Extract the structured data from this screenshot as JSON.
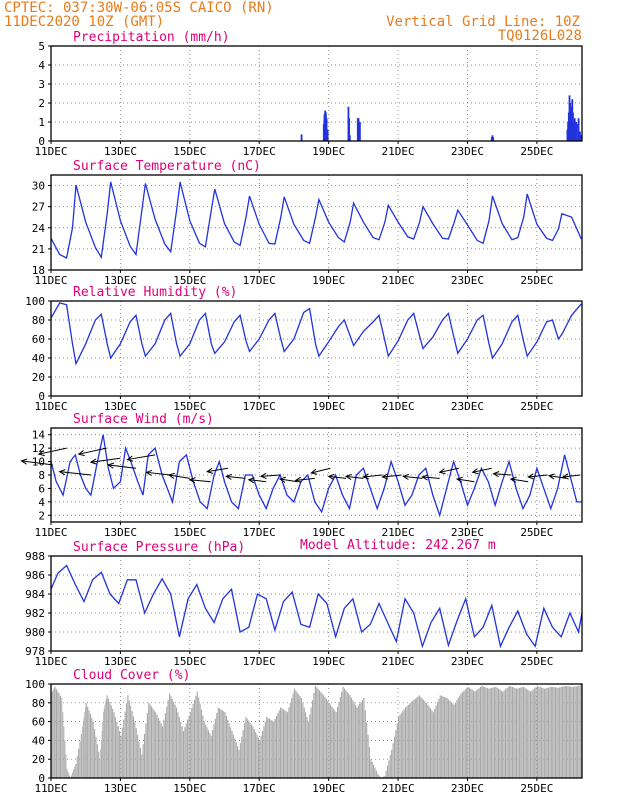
{
  "header": {
    "line1": "CPTEC:  037:30W-06:05S  CAICO (RN)",
    "line2": "11DEC2020 10Z (GMT)",
    "grid_note": "Vertical Grid Line: 10Z",
    "run_code": "TQ0126L028"
  },
  "model_altitude": "Model Altitude: 242.267 m",
  "x_ticks": [
    "11DEC",
    "13DEC",
    "15DEC",
    "17DEC",
    "19DEC",
    "21DEC",
    "23DEC",
    "25DEC"
  ],
  "colors": {
    "header": "#e87b1c",
    "title": "#e0007a",
    "line": "#2233dd",
    "bar": "#2233dd",
    "cloud": "#a8a8a8"
  },
  "chart_data": [
    {
      "id": "precip",
      "type": "bar",
      "title": "Precipitation (mm/h)",
      "ylim": [
        0,
        5
      ],
      "yticks": [
        0,
        1,
        2,
        3,
        4,
        5
      ],
      "x_unit": "days since 11DEC 10Z",
      "xlim": [
        0,
        15.3
      ],
      "x": [
        7.22,
        7.86,
        7.88,
        7.9,
        7.92,
        7.94,
        7.97,
        8.57,
        8.59,
        8.61,
        8.84,
        8.86,
        8.88,
        8.9,
        12.7,
        12.72,
        12.74,
        14.88,
        14.9,
        14.92,
        14.94,
        14.96,
        14.98,
        15.0,
        15.02,
        15.04,
        15.06,
        15.09,
        15.11,
        15.13,
        15.15,
        15.2,
        15.24,
        15.27
      ],
      "values": [
        0.35,
        0.9,
        1.4,
        1.6,
        1.5,
        1.2,
        0.6,
        1.8,
        1.2,
        0.3,
        1.2,
        1.2,
        1.0,
        1.0,
        0.2,
        0.3,
        0.2,
        0.6,
        1.0,
        1.5,
        2.4,
        2.0,
        1.6,
        1.8,
        2.2,
        1.5,
        1.0,
        1.2,
        0.8,
        1.0,
        0.9,
        1.2,
        0.5,
        0.3
      ]
    },
    {
      "id": "temp",
      "type": "line",
      "title": "Surface Temperature (nC)",
      "ylim": [
        18,
        31.5
      ],
      "yticks": [
        18,
        21,
        24,
        27,
        30
      ],
      "xlim": [
        0,
        15.3
      ],
      "x": [
        0,
        0.25,
        0.45,
        0.62,
        0.72,
        1.0,
        1.28,
        1.45,
        1.62,
        1.72,
        2.0,
        2.28,
        2.45,
        2.62,
        2.72,
        3.0,
        3.28,
        3.45,
        3.62,
        3.72,
        4.0,
        4.28,
        4.45,
        4.62,
        4.72,
        5.0,
        5.28,
        5.45,
        5.62,
        5.72,
        6.0,
        6.28,
        6.45,
        6.62,
        6.72,
        7.0,
        7.28,
        7.45,
        7.62,
        7.72,
        8.0,
        8.28,
        8.45,
        8.62,
        8.72,
        9.0,
        9.28,
        9.45,
        9.62,
        9.72,
        10.0,
        10.28,
        10.45,
        10.62,
        10.72,
        11.0,
        11.28,
        11.45,
        11.62,
        11.72,
        12.0,
        12.28,
        12.45,
        12.62,
        12.72,
        13.0,
        13.28,
        13.45,
        13.62,
        13.72,
        14.0,
        14.28,
        14.45,
        14.62,
        14.72,
        15.0,
        15.28
      ],
      "values": [
        22.5,
        20.2,
        19.7,
        24,
        30.1,
        24.8,
        21.2,
        19.8,
        26,
        30.5,
        25,
        21.4,
        20.2,
        26.5,
        30.3,
        25.2,
        21.7,
        20.6,
        26.5,
        30.5,
        25,
        21.8,
        21.3,
        26.5,
        29.5,
        24.6,
        22,
        21.5,
        25.5,
        28.5,
        24.5,
        21.8,
        21.7,
        25.5,
        28.4,
        24.5,
        22.2,
        21.8,
        25.5,
        28,
        24.8,
        22.6,
        22,
        24.8,
        27.5,
        24.8,
        22.6,
        22.3,
        24.8,
        27.2,
        24.8,
        22.7,
        22.4,
        24.8,
        27,
        24.6,
        22.5,
        22.4,
        24.8,
        26.5,
        24.4,
        22.2,
        21.8,
        25,
        28.5,
        24.6,
        22.3,
        22.6,
        25.5,
        28.8,
        24.5,
        22.5,
        22.2,
        23.8,
        26,
        25.5,
        22.4
      ]
    },
    {
      "id": "rh",
      "type": "line",
      "title": "Relative Humidity (%)",
      "ylim": [
        0,
        100
      ],
      "yticks": [
        0,
        20,
        40,
        60,
        80,
        100
      ],
      "xlim": [
        0,
        15.3
      ],
      "x": [
        0,
        0.25,
        0.45,
        0.62,
        0.72,
        1.0,
        1.28,
        1.45,
        1.62,
        1.72,
        2.0,
        2.28,
        2.45,
        2.62,
        2.72,
        3.0,
        3.28,
        3.45,
        3.62,
        3.72,
        4.0,
        4.28,
        4.45,
        4.62,
        4.72,
        5.0,
        5.28,
        5.45,
        5.62,
        5.72,
        6.0,
        6.28,
        6.45,
        6.62,
        6.72,
        7.0,
        7.28,
        7.45,
        7.62,
        7.72,
        8.0,
        8.28,
        8.45,
        8.62,
        8.72,
        9.0,
        9.28,
        9.45,
        9.62,
        9.72,
        10.0,
        10.28,
        10.45,
        10.62,
        10.72,
        11.0,
        11.28,
        11.45,
        11.62,
        11.72,
        12.0,
        12.28,
        12.45,
        12.62,
        12.72,
        13.0,
        13.28,
        13.45,
        13.62,
        13.72,
        14.0,
        14.28,
        14.45,
        14.62,
        14.72,
        15.0,
        15.28
      ],
      "values": [
        82,
        98,
        96,
        55,
        34,
        55,
        80,
        86,
        55,
        40,
        55,
        78,
        85,
        55,
        42,
        55,
        80,
        87,
        55,
        42,
        55,
        80,
        87,
        55,
        45,
        57,
        78,
        85,
        58,
        47,
        60,
        80,
        87,
        60,
        47,
        60,
        88,
        92,
        55,
        42,
        57,
        73,
        80,
        63,
        53,
        68,
        78,
        85,
        58,
        42,
        58,
        80,
        87,
        63,
        50,
        62,
        80,
        87,
        60,
        45,
        60,
        80,
        85,
        55,
        40,
        55,
        78,
        85,
        57,
        42,
        57,
        78,
        80,
        60,
        65,
        85,
        97
      ]
    },
    {
      "id": "wind",
      "type": "line",
      "title": "Surface Wind (m/s)",
      "ylim": [
        1,
        15
      ],
      "yticks": [
        2,
        4,
        6,
        8,
        10,
        12,
        14
      ],
      "xlim": [
        0,
        15.3
      ],
      "x": [
        0,
        0.15,
        0.35,
        0.55,
        0.7,
        0.85,
        1.0,
        1.15,
        1.3,
        1.5,
        1.65,
        1.8,
        2.0,
        2.15,
        2.3,
        2.5,
        2.65,
        2.8,
        3.0,
        3.2,
        3.35,
        3.5,
        3.7,
        3.9,
        4.1,
        4.3,
        4.5,
        4.7,
        4.85,
        5.0,
        5.2,
        5.4,
        5.6,
        5.8,
        6.0,
        6.2,
        6.4,
        6.6,
        6.8,
        7.0,
        7.2,
        7.4,
        7.6,
        7.8,
        8.0,
        8.2,
        8.4,
        8.6,
        8.8,
        9.0,
        9.2,
        9.4,
        9.6,
        9.8,
        10.0,
        10.2,
        10.4,
        10.6,
        10.8,
        11.0,
        11.2,
        11.4,
        11.6,
        11.8,
        12.0,
        12.2,
        12.4,
        12.6,
        12.8,
        13.0,
        13.2,
        13.4,
        13.6,
        13.8,
        14.0,
        14.2,
        14.4,
        14.6,
        14.8,
        15.0,
        15.15,
        15.3
      ],
      "values": [
        10,
        7,
        5,
        10,
        11,
        8,
        6,
        5,
        9,
        14,
        9,
        6,
        7,
        12,
        10,
        7,
        5,
        11,
        12,
        8,
        6,
        4,
        10,
        11,
        7,
        4,
        3,
        8,
        10,
        7,
        4,
        3,
        8,
        8,
        5,
        3,
        6,
        8,
        5,
        4,
        7,
        8,
        4,
        2.5,
        6,
        8,
        5,
        3,
        8,
        9,
        6,
        3,
        6,
        10,
        7,
        3.5,
        5,
        8,
        9,
        5,
        2,
        6,
        10,
        7,
        3.5,
        6,
        9,
        7,
        3.5,
        7,
        10,
        6,
        3,
        5,
        9,
        6,
        3,
        6,
        11,
        7,
        4,
        4
      ]
    },
    {
      "id": "pressure",
      "type": "line",
      "title": "Surface Pressure (hPa)",
      "ylim": [
        978,
        988
      ],
      "yticks": [
        978,
        980,
        982,
        984,
        986,
        988
      ],
      "xlim": [
        0,
        15.3
      ],
      "x": [
        0,
        0.2,
        0.45,
        0.7,
        0.95,
        1.2,
        1.45,
        1.7,
        1.95,
        2.2,
        2.45,
        2.7,
        2.95,
        3.2,
        3.45,
        3.7,
        3.95,
        4.2,
        4.45,
        4.7,
        4.95,
        5.2,
        5.45,
        5.7,
        5.95,
        6.2,
        6.45,
        6.7,
        6.95,
        7.2,
        7.45,
        7.7,
        7.95,
        8.2,
        8.45,
        8.7,
        8.95,
        9.2,
        9.45,
        9.7,
        9.95,
        10.2,
        10.45,
        10.7,
        10.95,
        11.2,
        11.45,
        11.7,
        11.95,
        12.2,
        12.45,
        12.7,
        12.95,
        13.2,
        13.45,
        13.7,
        13.95,
        14.2,
        14.45,
        14.7,
        14.95,
        15.2,
        15.3
      ],
      "values": [
        984.5,
        986.2,
        987,
        985,
        983.2,
        985.5,
        986.3,
        984,
        983,
        985.5,
        985.5,
        982,
        984,
        985.6,
        984,
        979.5,
        983.5,
        985,
        982.5,
        981,
        983.5,
        984.5,
        980,
        980.5,
        984,
        983.5,
        980.2,
        983.2,
        984.2,
        980.8,
        980.5,
        984,
        983,
        979.5,
        982.5,
        983.5,
        980,
        980.8,
        983,
        981,
        979,
        983.5,
        982,
        978.5,
        981,
        982.5,
        978.6,
        981.2,
        983.5,
        979.5,
        980.5,
        982.8,
        978.5,
        980.5,
        982.2,
        979.8,
        978.5,
        982.5,
        980.5,
        979.5,
        982,
        980,
        982
      ]
    },
    {
      "id": "cloud",
      "type": "area",
      "title": "Cloud Cover (%)",
      "ylim": [
        0,
        100
      ],
      "yticks": [
        0,
        20,
        40,
        60,
        80,
        100
      ],
      "xlim": [
        0,
        15.3
      ],
      "x": [
        0,
        0.1,
        0.3,
        0.45,
        0.55,
        0.7,
        0.9,
        1.0,
        1.2,
        1.4,
        1.5,
        1.6,
        1.8,
        2.0,
        2.2,
        2.4,
        2.6,
        2.8,
        3.0,
        3.2,
        3.4,
        3.6,
        3.8,
        4.0,
        4.2,
        4.4,
        4.6,
        4.8,
        5.0,
        5.2,
        5.4,
        5.6,
        5.8,
        6.0,
        6.2,
        6.4,
        6.6,
        6.8,
        7.0,
        7.2,
        7.4,
        7.6,
        7.8,
        8.0,
        8.2,
        8.4,
        8.6,
        8.8,
        9.0,
        9.2,
        9.4,
        9.5,
        9.6,
        9.8,
        10.0,
        10.2,
        10.4,
        10.6,
        10.8,
        11.0,
        11.2,
        11.4,
        11.6,
        11.8,
        12.0,
        12.2,
        12.4,
        12.6,
        12.8,
        13.0,
        13.2,
        13.4,
        13.6,
        13.8,
        14.0,
        14.2,
        14.4,
        14.6,
        14.8,
        15.0,
        15.2,
        15.3
      ],
      "values": [
        90,
        97,
        85,
        10,
        0,
        15,
        55,
        80,
        60,
        20,
        70,
        88,
        70,
        45,
        88,
        60,
        25,
        80,
        70,
        55,
        90,
        75,
        50,
        70,
        92,
        60,
        45,
        75,
        70,
        50,
        30,
        65,
        55,
        40,
        65,
        60,
        75,
        70,
        95,
        85,
        60,
        98,
        90,
        80,
        70,
        97,
        88,
        75,
        85,
        20,
        5,
        0,
        2,
        30,
        65,
        75,
        82,
        88,
        80,
        70,
        88,
        85,
        78,
        90,
        97,
        92,
        98,
        95,
        97,
        92,
        98,
        95,
        97,
        92,
        98,
        95,
        97,
        96,
        98,
        97,
        98,
        100
      ]
    }
  ],
  "wind_barbs": {
    "x": [
      0.05,
      0.45,
      1.15,
      1.6,
      2.0,
      2.45,
      3.0,
      3.45,
      4.0,
      4.6,
      5.1,
      5.6,
      6.2,
      6.6,
      7.1,
      7.6,
      8.05,
      8.5,
      9.0,
      9.55,
      10.1,
      10.7,
      11.2,
      11.75,
      12.2,
      12.7,
      13.25,
      13.75,
      14.3,
      14.85,
      15.25
    ],
    "y": [
      9.5,
      12,
      8,
      12,
      10.5,
      9,
      11,
      8,
      7.5,
      7,
      9,
      7.5,
      7,
      8,
      7,
      7.5,
      9,
      7.5,
      7.5,
      8,
      8,
      7.5,
      7.5,
      9,
      7,
      9,
      8,
      7,
      8,
      7.5,
      8
    ],
    "dx": [
      -0.9,
      -0.8,
      -0.9,
      -0.8,
      -0.85,
      -0.8,
      -0.8,
      -0.7,
      -0.6,
      -0.6,
      -0.6,
      -0.55,
      -0.5,
      -0.55,
      -0.5,
      -0.55,
      -0.55,
      -0.5,
      -0.5,
      -0.55,
      -0.55,
      -0.55,
      -0.5,
      -0.55,
      -0.5,
      -0.55,
      -0.5,
      -0.5,
      -0.55,
      -0.5,
      -0.5
    ],
    "dy": [
      0.6,
      -0.9,
      0.5,
      -0.9,
      -0.6,
      0.5,
      -0.7,
      0.4,
      0.5,
      0.3,
      -0.5,
      0.3,
      0.3,
      -0.2,
      0.4,
      -0.3,
      -0.7,
      0.3,
      0.3,
      -0.3,
      -0.3,
      0.3,
      0.2,
      -0.6,
      0.4,
      -0.6,
      0.2,
      0.4,
      -0.3,
      0.4,
      -0.3
    ]
  }
}
